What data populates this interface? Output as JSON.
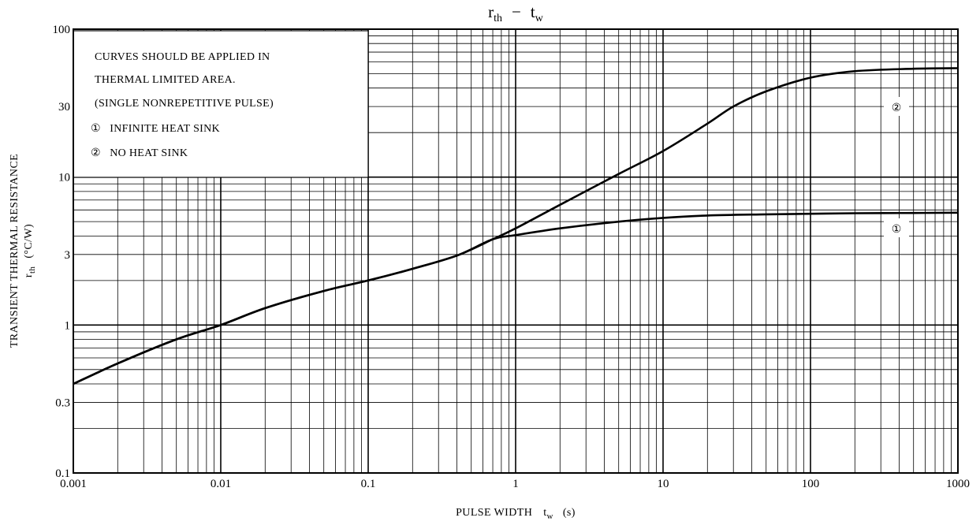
{
  "chart_data": {
    "type": "line",
    "title": {
      "main_r": "r",
      "main_r_sub": "th",
      "dash": "−",
      "main_t": "t",
      "main_t_sub": "w"
    },
    "xlabel": {
      "text": "PULSE WIDTH",
      "sym": "t",
      "sub": "w",
      "unit": "(s)"
    },
    "ylabel": {
      "line1": "TRANSIENT THERMAL RESISTANCE",
      "sym": "r",
      "sub": "th",
      "unit": "(°C/W)"
    },
    "x_scale": "log",
    "y_scale": "log",
    "xlim": [
      0.001,
      1000
    ],
    "ylim": [
      0.1,
      100
    ],
    "grid": true,
    "x_ticks": [
      {
        "value": 0.001,
        "label": "0.001"
      },
      {
        "value": 0.01,
        "label": "0.01"
      },
      {
        "value": 0.1,
        "label": "0.1"
      },
      {
        "value": 1,
        "label": "1"
      },
      {
        "value": 10,
        "label": "10"
      },
      {
        "value": 100,
        "label": "100"
      },
      {
        "value": 1000,
        "label": "1000"
      }
    ],
    "y_ticks": [
      {
        "value": 0.1,
        "label": "0.1"
      },
      {
        "value": 0.3,
        "label": "0.3"
      },
      {
        "value": 1,
        "label": "1"
      },
      {
        "value": 3,
        "label": "3"
      },
      {
        "value": 10,
        "label": "10"
      },
      {
        "value": 30,
        "label": "30"
      },
      {
        "value": 100,
        "label": "100"
      }
    ],
    "notes": [
      "CURVES SHOULD BE APPLIED IN",
      "THERMAL LIMITED AREA.",
      "(SINGLE NONREPETITIVE PULSE)",
      "①   INFINITE HEAT SINK",
      "②   NO HEAT SINK"
    ],
    "series": [
      {
        "name": "①",
        "x": [
          0.001,
          0.002,
          0.005,
          0.01,
          0.02,
          0.05,
          0.1,
          0.2,
          0.4,
          0.7,
          1,
          2,
          5,
          10,
          20,
          50,
          100,
          200,
          500,
          1000
        ],
        "y": [
          0.4,
          0.55,
          0.8,
          1.0,
          1.3,
          1.7,
          2.0,
          2.4,
          2.95,
          3.8,
          4.05,
          4.5,
          5.0,
          5.3,
          5.5,
          5.6,
          5.65,
          5.7,
          5.72,
          5.75
        ]
      },
      {
        "name": "②",
        "x": [
          0.001,
          0.002,
          0.005,
          0.01,
          0.02,
          0.05,
          0.1,
          0.2,
          0.4,
          0.7,
          1,
          2,
          5,
          10,
          20,
          30,
          50,
          100,
          200,
          500,
          1000
        ],
        "y": [
          0.4,
          0.55,
          0.8,
          1.0,
          1.3,
          1.7,
          2.0,
          2.4,
          2.95,
          3.8,
          4.5,
          6.5,
          10.5,
          15.0,
          23.0,
          30.0,
          38.0,
          47.0,
          52.0,
          54.0,
          54.5
        ]
      }
    ]
  }
}
